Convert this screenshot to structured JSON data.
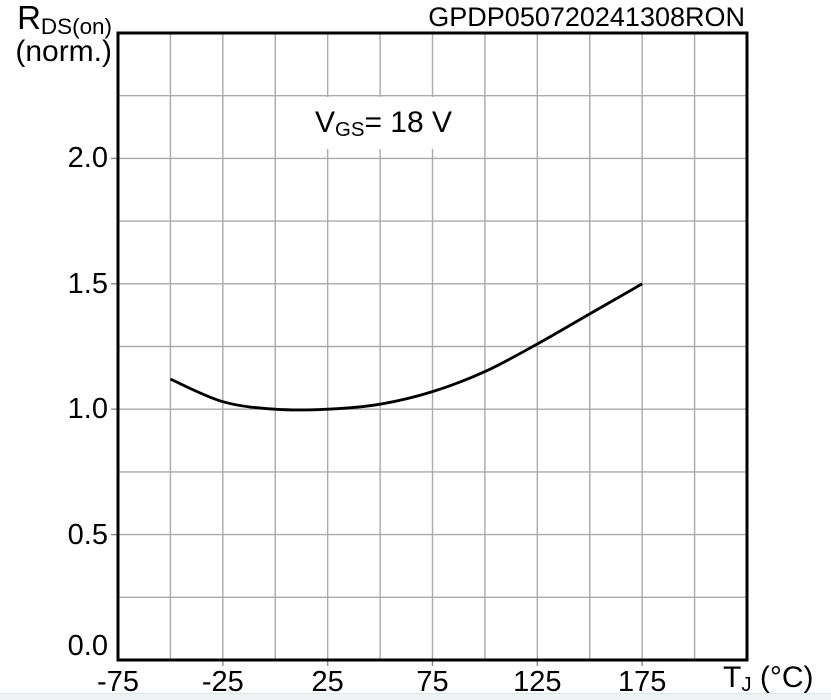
{
  "page": {
    "background": "#ffffff",
    "bottom_strip_color": "#f0f2f5"
  },
  "labels": {
    "plot_id": "GPDP050720241308RON",
    "y_axis": {
      "main": "R",
      "sub": "DS(on)",
      "line2": "(norm.)"
    },
    "x_axis": {
      "main": "T",
      "sub": "J",
      "rest": " (°C)"
    },
    "annotation": {
      "main": "V",
      "sub": "GS",
      "rest": "= 18 V"
    }
  },
  "chart_data": {
    "type": "line",
    "title": "GPDP050720241308RON",
    "xlabel": "TJ (°C)",
    "ylabel": "RDS(on) (norm.)",
    "annotation": "VGS = 18 V",
    "xlim": [
      -75,
      225
    ],
    "ylim": [
      0,
      2.5
    ],
    "grid": true,
    "x_grid_step": 25,
    "y_grid_step": 0.25,
    "x_ticks": [
      {
        "v": -75,
        "label": "-75"
      },
      {
        "v": -25,
        "label": "-25"
      },
      {
        "v": 25,
        "label": "25"
      },
      {
        "v": 75,
        "label": "75"
      },
      {
        "v": 125,
        "label": "125"
      },
      {
        "v": 175,
        "label": "175"
      }
    ],
    "y_ticks": [
      {
        "v": 0.0,
        "label": "0.0"
      },
      {
        "v": 0.5,
        "label": "0.5"
      },
      {
        "v": 1.0,
        "label": "1.0"
      },
      {
        "v": 1.5,
        "label": "1.5"
      },
      {
        "v": 2.0,
        "label": "2.0"
      }
    ],
    "x": [
      -50,
      -25,
      0,
      25,
      50,
      75,
      100,
      125,
      150,
      175
    ],
    "series": [
      {
        "name": "RDS(on) normalized at VGS = 18 V",
        "values": [
          1.12,
          1.03,
          1.0,
          1.0,
          1.02,
          1.07,
          1.15,
          1.26,
          1.38,
          1.5
        ],
        "color": "#000000",
        "stroke_width": 2.8
      }
    ],
    "gridline_color": "#aaaaaa",
    "tick_stub_color": "#8a8a8a",
    "frame_color": "#000000",
    "legend": "none"
  }
}
